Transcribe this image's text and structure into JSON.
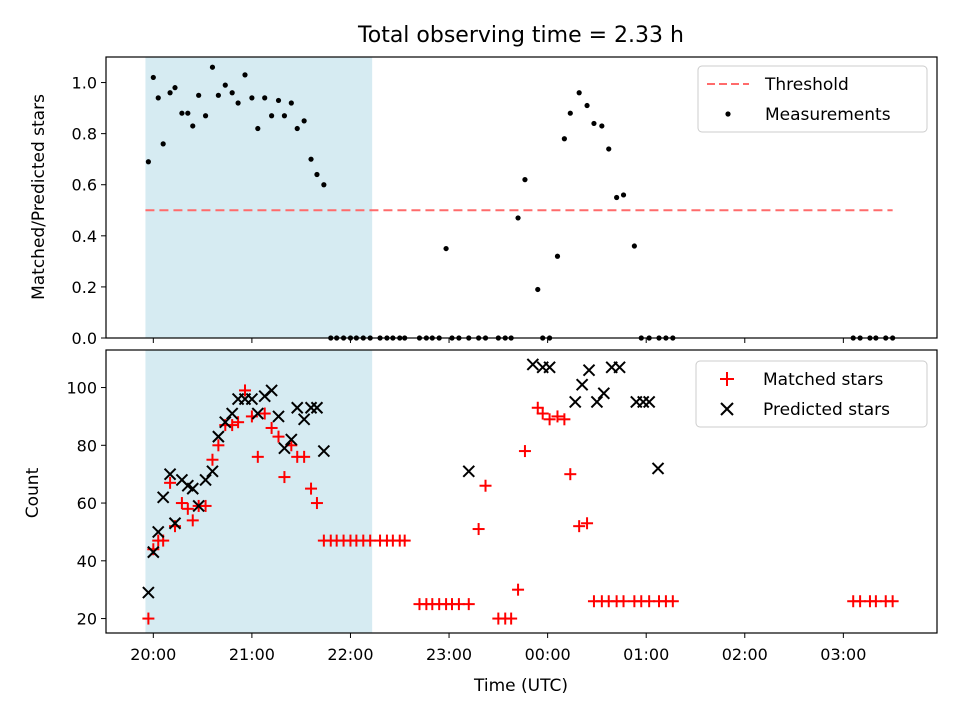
{
  "figure": {
    "title": "Total observing time = 2.33 h",
    "xlabel": "Time (UTC)",
    "xticks": [
      {
        "t": 0.0,
        "label": "20:00"
      },
      {
        "t": 1.0,
        "label": "21:00"
      },
      {
        "t": 2.0,
        "label": "22:00"
      },
      {
        "t": 3.0,
        "label": "23:00"
      },
      {
        "t": 4.0,
        "label": "00:00"
      },
      {
        "t": 5.0,
        "label": "01:00"
      },
      {
        "t": 6.0,
        "label": "02:00"
      },
      {
        "t": 7.0,
        "label": "03:00"
      }
    ],
    "xlim": [
      -0.48,
      7.95
    ],
    "shaded_span": [
      -0.08,
      2.22
    ],
    "colors": {
      "shade": "#add8e6",
      "threshold": "#ff6b6b",
      "measurement": "#000000",
      "matched": "#ff0000",
      "predicted": "#000000"
    }
  },
  "chart_data": [
    {
      "type": "scatter",
      "ylabel": "Matched/Predicted stars",
      "ylim": [
        0,
        1.1
      ],
      "yticks": [
        0.0,
        0.2,
        0.4,
        0.6,
        0.8,
        1.0
      ],
      "ytick_labels": [
        "0.0",
        "0.2",
        "0.4",
        "0.6",
        "0.8",
        "1.0"
      ],
      "grid": false,
      "legend_position": "top-right",
      "legend": [
        "Threshold",
        "Measurements"
      ],
      "threshold": {
        "name": "Threshold",
        "y": 0.5,
        "x": [
          -0.08,
          7.5
        ]
      },
      "series": [
        {
          "name": "Measurements",
          "x": [
            -0.05,
            0.0,
            0.05,
            0.1,
            0.17,
            0.22,
            0.29,
            0.35,
            0.4,
            0.46,
            0.53,
            0.6,
            0.66,
            0.73,
            0.8,
            0.86,
            0.93,
            1.0,
            1.06,
            1.13,
            1.2,
            1.27,
            1.33,
            1.4,
            1.46,
            1.53,
            1.6,
            1.66,
            1.73,
            1.8,
            1.86,
            1.93,
            2.0,
            2.06,
            2.13,
            2.2,
            2.3,
            2.37,
            2.43,
            2.5,
            2.55,
            2.7,
            2.77,
            2.83,
            2.9,
            2.97,
            3.03,
            3.1,
            3.2,
            3.3,
            3.37,
            3.5,
            3.57,
            3.63,
            3.7,
            3.77,
            3.9,
            3.95,
            4.02,
            4.1,
            4.17,
            4.23,
            4.32,
            4.4,
            4.47,
            4.55,
            4.62,
            4.7,
            4.77,
            4.88,
            4.95,
            5.03,
            5.13,
            5.2,
            5.27,
            7.1,
            7.17,
            7.27,
            7.33,
            7.43,
            7.5
          ],
          "values": [
            0.69,
            1.02,
            0.94,
            0.76,
            0.96,
            0.98,
            0.88,
            0.88,
            0.83,
            0.95,
            0.87,
            1.06,
            0.95,
            0.99,
            0.96,
            0.92,
            1.03,
            0.94,
            0.82,
            0.94,
            0.87,
            0.93,
            0.87,
            0.92,
            0.82,
            0.85,
            0.7,
            0.64,
            0.6,
            0.0,
            0.0,
            0.0,
            0.0,
            0.0,
            0.0,
            0.0,
            0.0,
            0.0,
            0.0,
            0.0,
            0.0,
            0.0,
            0.0,
            0.0,
            0.0,
            0.35,
            0.0,
            0.0,
            0.0,
            0.0,
            0.0,
            0.0,
            0.0,
            0.0,
            0.47,
            0.62,
            0.19,
            0.0,
            0.0,
            0.32,
            0.78,
            0.88,
            0.96,
            0.91,
            0.84,
            0.83,
            0.74,
            0.55,
            0.56,
            0.36,
            0.0,
            0.0,
            0.0,
            0.0,
            0.0,
            0.0,
            0.0,
            0.0,
            0.0,
            0.0,
            0.0
          ]
        }
      ]
    },
    {
      "type": "scatter",
      "ylabel": "Count",
      "ylim": [
        15,
        113
      ],
      "yticks": [
        20,
        40,
        60,
        80,
        100
      ],
      "ytick_labels": [
        "20",
        "40",
        "60",
        "80",
        "100"
      ],
      "grid": false,
      "legend_position": "top-right",
      "legend": [
        "Matched stars",
        "Predicted stars"
      ],
      "series": [
        {
          "name": "Matched stars",
          "marker": "plus",
          "x": [
            -0.05,
            0.0,
            0.05,
            0.1,
            0.17,
            0.22,
            0.29,
            0.35,
            0.4,
            0.46,
            0.53,
            0.6,
            0.66,
            0.73,
            0.8,
            0.86,
            0.93,
            1.0,
            1.06,
            1.13,
            1.2,
            1.27,
            1.33,
            1.4,
            1.46,
            1.53,
            1.6,
            1.66,
            1.73,
            1.8,
            1.86,
            1.93,
            2.0,
            2.06,
            2.13,
            2.2,
            2.3,
            2.37,
            2.43,
            2.5,
            2.55,
            2.7,
            2.77,
            2.83,
            2.9,
            2.97,
            3.03,
            3.1,
            3.2,
            3.3,
            3.37,
            3.5,
            3.57,
            3.63,
            3.7,
            3.77,
            3.9,
            3.95,
            4.02,
            4.1,
            4.17,
            4.23,
            4.32,
            4.4,
            4.47,
            4.55,
            4.62,
            4.7,
            4.77,
            4.88,
            4.95,
            5.03,
            5.13,
            5.2,
            5.27,
            7.1,
            7.17,
            7.27,
            7.33,
            7.43,
            7.5
          ],
          "values": [
            20,
            44,
            47,
            47,
            67,
            52,
            60,
            58,
            54,
            59,
            59,
            75,
            80,
            87,
            87,
            88,
            99,
            90,
            76,
            91,
            86,
            83,
            69,
            80,
            76,
            76,
            65,
            60,
            47,
            47,
            47,
            47,
            47,
            47,
            47,
            47,
            47,
            47,
            47,
            47,
            47,
            25,
            25,
            25,
            25,
            25,
            25,
            25,
            25,
            51,
            66,
            20,
            20,
            20,
            30,
            78,
            93,
            91,
            89,
            90,
            89,
            70,
            52,
            53,
            26,
            26,
            26,
            26,
            26,
            26,
            26,
            26,
            26,
            26,
            26,
            26,
            26,
            26,
            26,
            26,
            26
          ]
        },
        {
          "name": "Predicted stars",
          "marker": "x",
          "x": [
            -0.05,
            0.0,
            0.05,
            0.1,
            0.17,
            0.22,
            0.29,
            0.35,
            0.4,
            0.46,
            0.53,
            0.6,
            0.66,
            0.73,
            0.8,
            0.86,
            0.93,
            1.0,
            1.06,
            1.13,
            1.2,
            1.27,
            1.33,
            1.4,
            1.46,
            1.53,
            1.6,
            1.66,
            1.73,
            3.2,
            3.85,
            3.95,
            4.02,
            4.28,
            4.35,
            4.42,
            4.5,
            4.57,
            4.65,
            4.73,
            4.9,
            4.97,
            5.03,
            5.12
          ],
          "values": [
            29,
            43,
            50,
            62,
            70,
            53,
            68,
            66,
            65,
            59,
            68,
            71,
            83,
            88,
            91,
            96,
            96,
            96,
            91,
            97,
            99,
            90,
            79,
            82,
            93,
            89,
            93,
            93,
            78,
            71,
            108,
            107,
            107,
            95,
            101,
            106,
            95,
            98,
            107,
            107,
            95,
            95,
            95,
            72
          ]
        }
      ]
    }
  ]
}
